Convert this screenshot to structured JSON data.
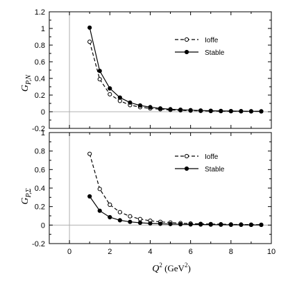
{
  "chart_data": [
    {
      "type": "line",
      "ylabel": "G_{P,N}",
      "xlabel": "",
      "xlim": [
        -1,
        10
      ],
      "ylim": [
        -0.2,
        1.2
      ],
      "x_ticks": [
        0,
        2,
        4,
        6,
        8,
        10
      ],
      "y_ticks": [
        -0.2,
        0,
        0.2,
        0.4,
        0.6,
        0.8,
        1,
        1.2
      ],
      "y_tick_labels": [
        "-0.2",
        "0",
        "0.2",
        "0.4",
        "0.6",
        "0.8",
        "1",
        "1.2"
      ],
      "reference_lines": {
        "x": 0,
        "y": 0
      },
      "grid": false,
      "legend_position": "top-right",
      "x": [
        1.0,
        1.5,
        2.0,
        2.5,
        3.0,
        3.5,
        4.0,
        4.5,
        5.0,
        5.5,
        6.0,
        6.5,
        7.0,
        7.5,
        8.0,
        8.5,
        9.0,
        9.5
      ],
      "series": [
        {
          "name": "Ioffe",
          "style": "dashed",
          "marker": "open-circle",
          "values": [
            0.84,
            0.39,
            0.21,
            0.13,
            0.08,
            0.055,
            0.04,
            0.03,
            0.022,
            0.017,
            0.013,
            0.01,
            0.008,
            0.007,
            0.006,
            0.005,
            0.004,
            0.004
          ]
        },
        {
          "name": "Stable",
          "style": "solid",
          "marker": "filled-circle",
          "values": [
            1.01,
            0.49,
            0.28,
            0.17,
            0.11,
            0.075,
            0.055,
            0.04,
            0.03,
            0.024,
            0.019,
            0.015,
            0.012,
            0.01,
            0.008,
            0.007,
            0.006,
            0.005
          ]
        }
      ]
    },
    {
      "type": "line",
      "ylabel": "G_{P,Σ}",
      "xlabel": "Q² (GeV²)",
      "xlim": [
        -1,
        10
      ],
      "ylim": [
        -0.2,
        1
      ],
      "x_ticks": [
        0,
        2,
        4,
        6,
        8,
        10
      ],
      "y_ticks": [
        -0.2,
        0,
        0.2,
        0.4,
        0.6,
        0.8,
        1
      ],
      "y_tick_labels": [
        "-0.2",
        "0",
        "0.2",
        "0.4",
        "0.6",
        "0.8",
        "1"
      ],
      "reference_lines": {
        "x": 0,
        "y": 0
      },
      "grid": false,
      "legend_position": "top-right",
      "x": [
        1.0,
        1.5,
        2.0,
        2.5,
        3.0,
        3.5,
        4.0,
        4.5,
        5.0,
        5.5,
        6.0,
        6.5,
        7.0,
        7.5,
        8.0,
        8.5,
        9.0,
        9.5
      ],
      "series": [
        {
          "name": "Ioffe",
          "style": "dashed",
          "marker": "open-circle",
          "values": [
            0.77,
            0.39,
            0.22,
            0.14,
            0.095,
            0.065,
            0.047,
            0.035,
            0.027,
            0.021,
            0.017,
            0.013,
            0.011,
            0.009,
            0.007,
            0.006,
            0.005,
            0.004
          ]
        },
        {
          "name": "Stable",
          "style": "solid",
          "marker": "filled-circle",
          "values": [
            0.31,
            0.155,
            0.085,
            0.052,
            0.035,
            0.025,
            0.018,
            0.014,
            0.011,
            0.009,
            0.007,
            0.006,
            0.005,
            0.004,
            0.003,
            0.003,
            0.002,
            0.002
          ]
        }
      ]
    }
  ],
  "labels": {
    "panel_top_ylabel_main": "G",
    "panel_top_ylabel_sub": "P,N",
    "panel_bottom_ylabel_main": "G",
    "panel_bottom_ylabel_sub": "P,Σ",
    "xlabel_main": "Q",
    "xlabel_sup": "2",
    "xlabel_unit_open": " (GeV",
    "xlabel_unit_sup": "2",
    "xlabel_unit_close": ")"
  },
  "colors": {
    "axis": "#000000",
    "reference_line": "#b0b0b0",
    "series": "#000000",
    "background": "#ffffff"
  }
}
